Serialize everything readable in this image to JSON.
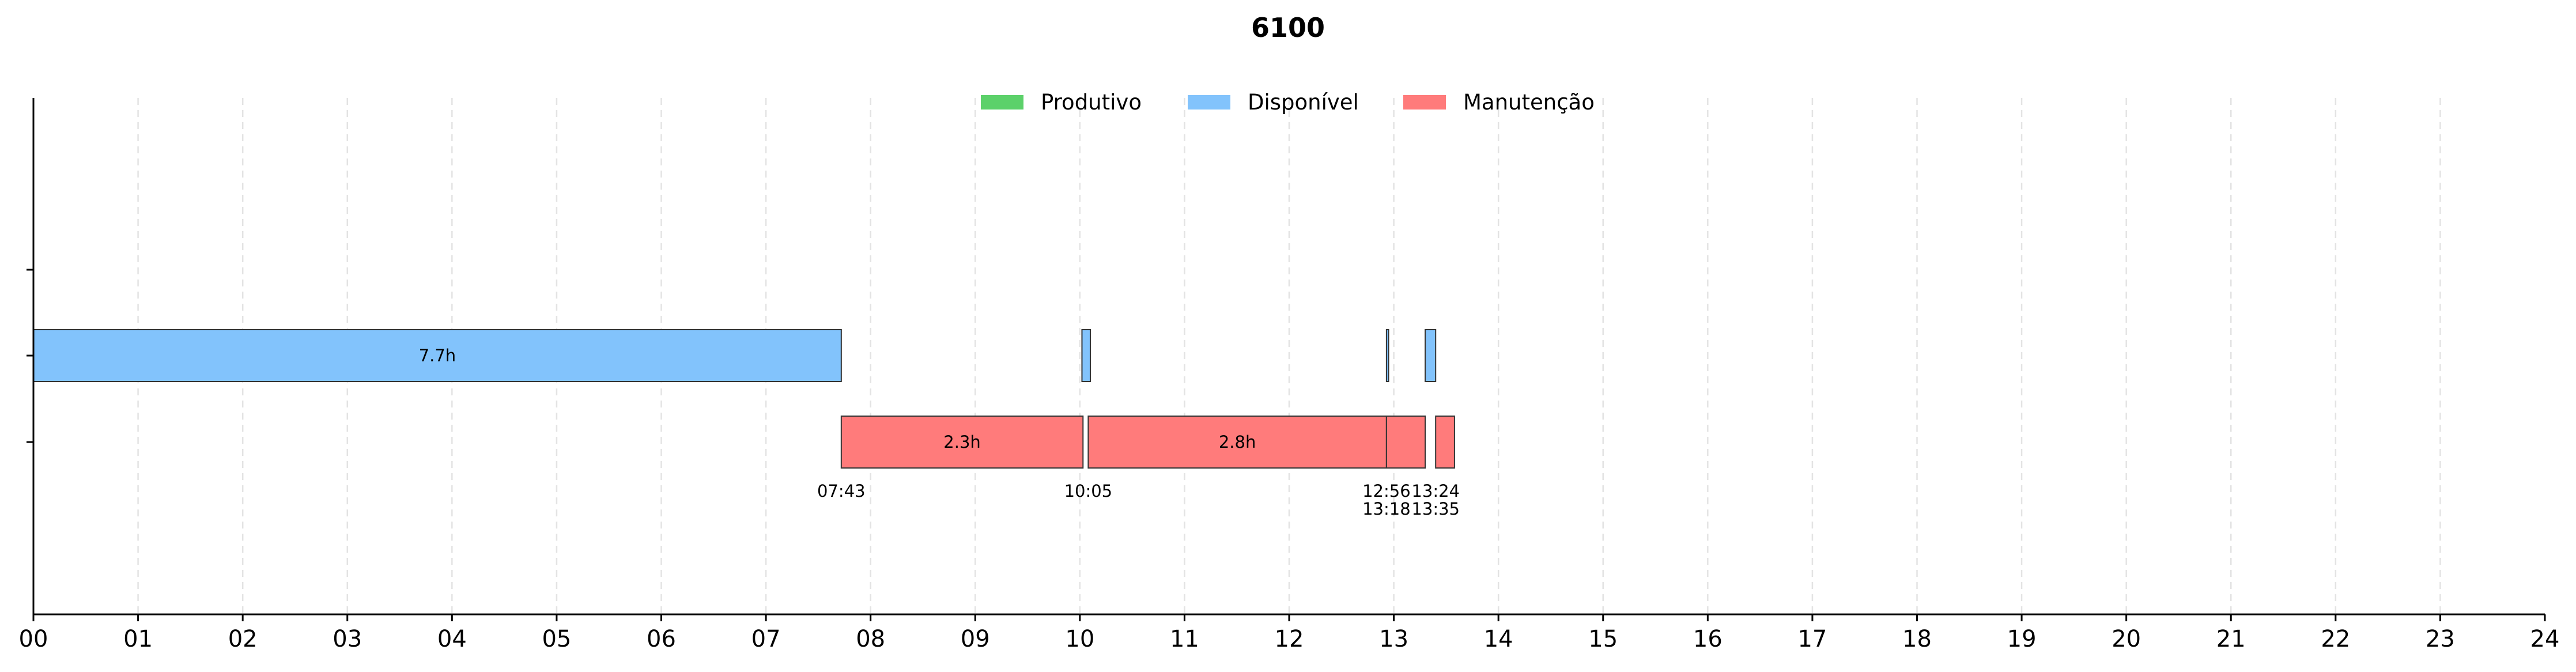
{
  "colors": {
    "Produtivo": "#5cd16a",
    "Disponível": "#82c3fc",
    "Manutenção": "#ff7b7b",
    "grid": "#e3e3e3",
    "edge": "#333333"
  },
  "chart_data": {
    "type": "gantt",
    "title": "6100",
    "x_unit": "hour of day",
    "xlim": [
      0,
      24
    ],
    "x_tick_labels": [
      "00",
      "01",
      "02",
      "03",
      "04",
      "05",
      "06",
      "07",
      "08",
      "09",
      "10",
      "11",
      "12",
      "13",
      "14",
      "15",
      "16",
      "17",
      "18",
      "19",
      "20",
      "21",
      "22",
      "23",
      "24"
    ],
    "grid": "vertical dashed",
    "legend": {
      "position": "top-center",
      "entries": [
        "Produtivo",
        "Disponível",
        "Manutenção"
      ]
    },
    "rows": [
      "Produtivo",
      "Disponível",
      "Manutenção"
    ],
    "segments": [
      {
        "row": "Disponível",
        "start": 0.0,
        "end": 7.72,
        "label": "7.7h"
      },
      {
        "row": "Disponível",
        "start": 10.02,
        "end": 10.1,
        "label": ""
      },
      {
        "row": "Disponível",
        "start": 12.93,
        "end": 12.95,
        "label": ""
      },
      {
        "row": "Disponível",
        "start": 13.3,
        "end": 13.4,
        "label": ""
      },
      {
        "row": "Manutenção",
        "start": 7.72,
        "end": 10.03,
        "label": "2.3h"
      },
      {
        "row": "Manutenção",
        "start": 10.08,
        "end": 12.93,
        "label": "2.8h"
      },
      {
        "row": "Manutenção",
        "start": 12.93,
        "end": 13.3,
        "label": ""
      },
      {
        "row": "Manutenção",
        "start": 13.4,
        "end": 13.58,
        "label": ""
      }
    ],
    "time_labels": [
      {
        "at": 7.72,
        "lines": [
          "07:43"
        ]
      },
      {
        "at": 10.08,
        "lines": [
          "10:05"
        ]
      },
      {
        "at": 12.93,
        "lines": [
          "12:56",
          "13:18"
        ]
      },
      {
        "at": 13.4,
        "lines": [
          "13:24",
          "13:35"
        ]
      }
    ]
  }
}
